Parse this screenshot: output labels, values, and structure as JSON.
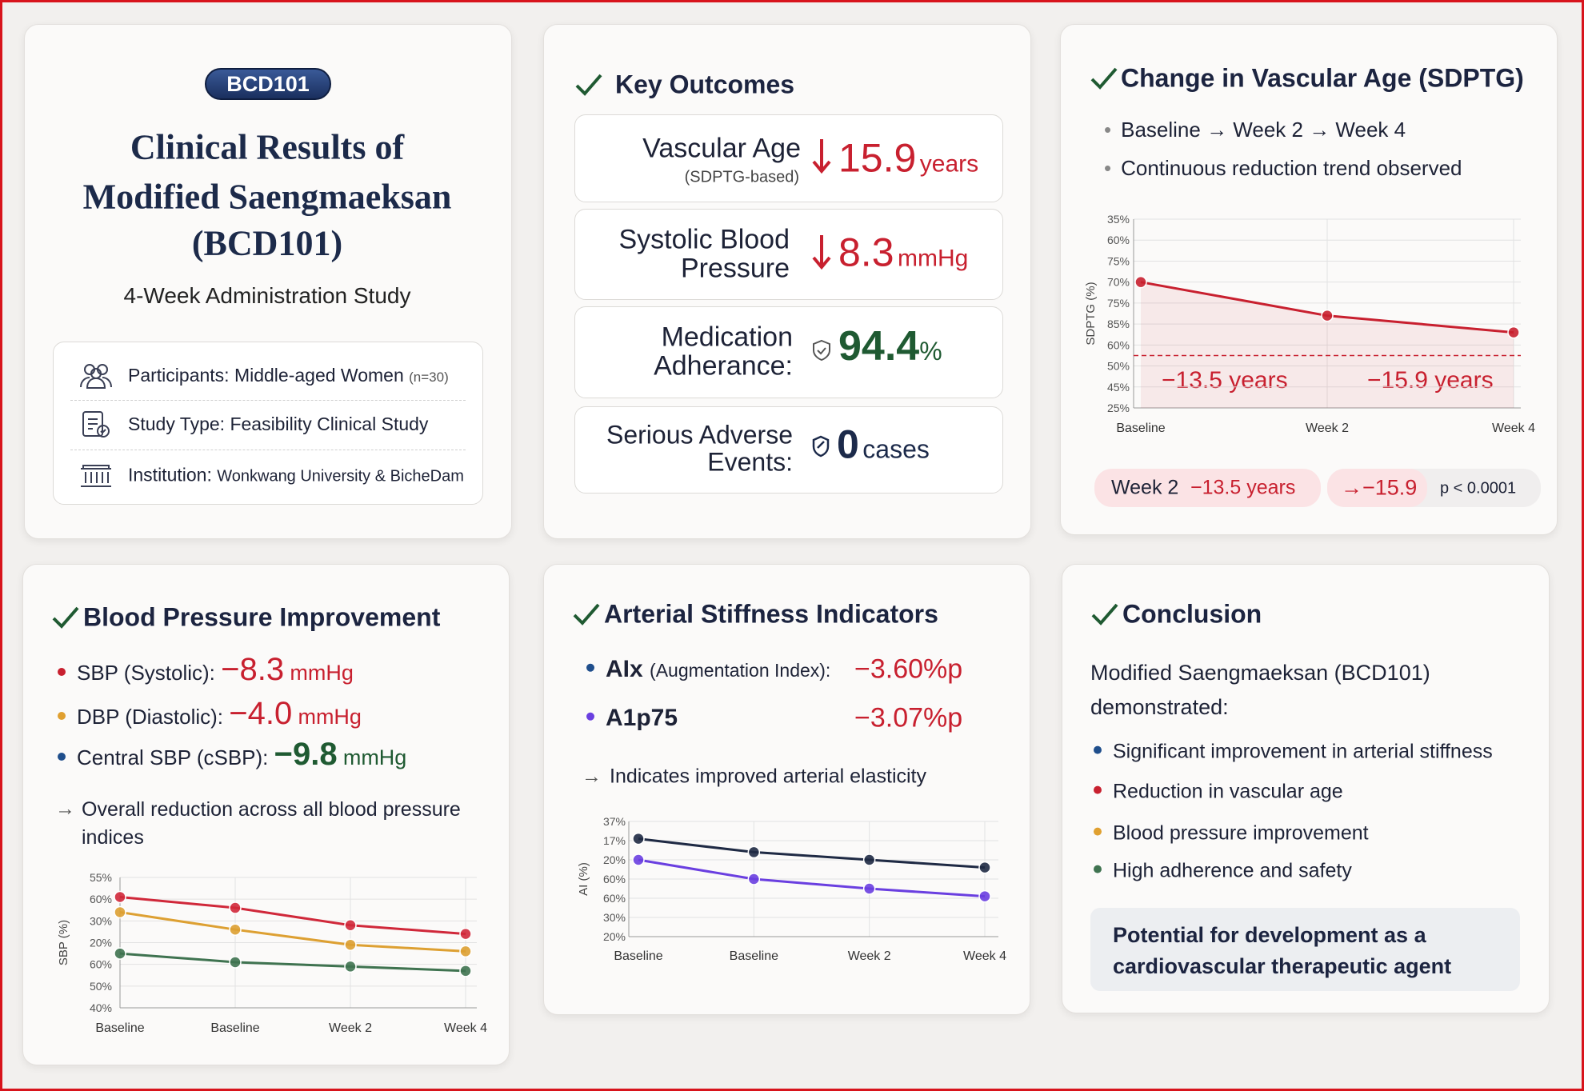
{
  "header": {
    "badge": "BCD101",
    "title_lines": [
      "Clinical Results of",
      "Modified Saengmaeksan",
      "(BCD101)"
    ],
    "subtitle": "4-Week Administration Study",
    "info": [
      {
        "label": "Participants:",
        "value": "Middle-aged Women",
        "note": "(n=30)"
      },
      {
        "label": "Study Type:",
        "value": "Feasibility Clinical Study"
      },
      {
        "label": "Institution:",
        "value": "Wonkwang University & BicheDam"
      }
    ]
  },
  "key_outcomes": {
    "title": "Key Outcomes",
    "items": [
      {
        "label": "Vascular Age",
        "sublabel": "(SDPTG-based)",
        "value": 15.9,
        "unit": "years",
        "color": "#c8202f"
      },
      {
        "label": "Systolic Blood Pressure",
        "value": 8.3,
        "unit": "mmHg",
        "color": "#c8202f"
      },
      {
        "label": "Medication Adherance:",
        "value": 94.4,
        "unit": "%",
        "color": "#1f5a32"
      },
      {
        "label": "Serious Adverse Events:",
        "value": 0,
        "unit": "cases",
        "color": "#1c2a4a"
      }
    ]
  },
  "vascular_age": {
    "title": "Change in Vascular Age (SDPTG)",
    "bullets": [
      "Baseline → Week 2 → Week 4",
      "Continuous reduction trend observed"
    ],
    "chart": {
      "type": "line",
      "y_label": "SDPTG (%)",
      "categories": [
        "Baseline",
        "Week 2",
        "Week 4"
      ],
      "values": [
        6.0,
        4.4,
        3.6
      ],
      "color": "#c8202f",
      "area": true,
      "grid": true,
      "reference_line": 2.5,
      "ylim": [
        0,
        9
      ],
      "yticks": [
        {
          "value": 9,
          "label": "35%"
        },
        {
          "value": 8,
          "label": "60%"
        },
        {
          "value": 7,
          "label": "75%"
        },
        {
          "value": 6,
          "label": "70%"
        },
        {
          "value": 5,
          "label": "75%"
        },
        {
          "value": 4,
          "label": "85%"
        },
        {
          "value": 3,
          "label": "60%"
        },
        {
          "value": 2,
          "label": "50%"
        },
        {
          "value": 1,
          "label": "45%"
        },
        {
          "value": 0,
          "label": "25%"
        }
      ],
      "annotations": [
        "−13.5 years",
        "−15.9 years"
      ]
    },
    "footer": {
      "week": "Week 2",
      "week_change": "−13.5 years",
      "final": "→−15.9",
      "p_value": "p < 0.0001"
    }
  },
  "blood_pressure": {
    "title": "Blood Pressure Improvement",
    "items": [
      {
        "label": "SBP (Systolic):",
        "value": "−8.3",
        "unit": "mmHg",
        "color": "#c8202f",
        "bullet_color": "#c8202f"
      },
      {
        "label": "DBP (Diastolic):",
        "value": "−4.0",
        "unit": "mmHg",
        "color": "#c8202f",
        "bullet_color": "#e0a030"
      },
      {
        "label": "Central SBP (cSBP):",
        "value": "−9.8",
        "unit": "mmHg",
        "color": "#1f5a32",
        "bullet_color": "#1f4e8c"
      }
    ],
    "note": "Overall reduction across all blood pressure indices",
    "chart": {
      "type": "line",
      "y_label": "SBP (%)",
      "categories": [
        "Baseline",
        "Baseline",
        "Week 2",
        "Week 4"
      ],
      "grid": true,
      "series": [
        {
          "color": "#d0283a",
          "values": [
            5.1,
            4.6,
            3.8,
            3.4
          ]
        },
        {
          "color": "#dda032",
          "values": [
            4.4,
            3.6,
            2.9,
            2.6
          ]
        },
        {
          "color": "#3f7350",
          "values": [
            2.5,
            2.1,
            1.9,
            1.7
          ]
        }
      ],
      "ylim": [
        0,
        6
      ],
      "yticks": [
        {
          "value": 6,
          "label": "55%"
        },
        {
          "value": 5,
          "label": "60%"
        },
        {
          "value": 4,
          "label": "30%"
        },
        {
          "value": 3,
          "label": "20%"
        },
        {
          "value": 2,
          "label": "60%"
        },
        {
          "value": 1,
          "label": "50%"
        },
        {
          "value": 0,
          "label": "40%"
        }
      ]
    }
  },
  "arterial": {
    "title": "Arterial Stiffness Indicators",
    "items": [
      {
        "label": "AIx",
        "sublabel": "(Augmentation Index):",
        "value": "−3.60%p",
        "bullet_color": "#1f4e8c"
      },
      {
        "label": "A1p75",
        "value": "−3.07%p",
        "bullet_color": "#6a3fe0"
      }
    ],
    "note": "Indicates improved arterial elasticity",
    "chart": {
      "type": "line",
      "y_label": "AI (%)",
      "categories": [
        "Baseline",
        "Baseline",
        "Week 2",
        "Week 4"
      ],
      "grid": true,
      "series": [
        {
          "color": "#1f2a44",
          "values": [
            5.1,
            4.4,
            4.0,
            3.6
          ]
        },
        {
          "color": "#6a3fe0",
          "values": [
            4.0,
            3.0,
            2.5,
            2.1
          ]
        }
      ],
      "ylim": [
        0,
        6
      ],
      "yticks": [
        {
          "value": 6,
          "label": "37%"
        },
        {
          "value": 5,
          "label": "17%"
        },
        {
          "value": 4,
          "label": "20%"
        },
        {
          "value": 3,
          "label": "60%"
        },
        {
          "value": 2,
          "label": "60%"
        },
        {
          "value": 1,
          "label": "30%"
        },
        {
          "value": 0,
          "label": "20%"
        }
      ]
    }
  },
  "conclusion": {
    "title": "Conclusion",
    "text": "Modified Saengmaeksan (BCD101) demonstrated:",
    "bullets": [
      {
        "text": "Significant improvement in arterial stiffness",
        "color": "#1f4e8c"
      },
      {
        "text": "Reduction in vascular age",
        "color": "#c8202f"
      },
      {
        "text": "Blood pressure improvement",
        "color": "#e0a030"
      },
      {
        "text": "High adherence and safety",
        "color": "#3f7350"
      }
    ],
    "highlight": "Potential for development as a cardiovascular therapeutic agent"
  }
}
